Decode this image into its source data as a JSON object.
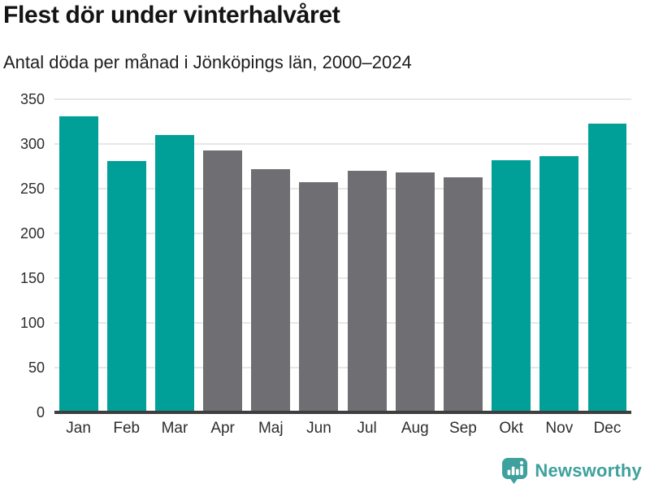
{
  "header": {
    "title": "Flest dör under vinterhalvåret",
    "subtitle": "Antal döda per månad i Jönköpings län, 2000–2024"
  },
  "chart_data": {
    "type": "bar",
    "title": "Flest dör under vinterhalvåret",
    "subtitle": "Antal döda per månad i Jönköpings län, 2000–2024",
    "categories": [
      "Jan",
      "Feb",
      "Mar",
      "Apr",
      "Maj",
      "Jun",
      "Jul",
      "Aug",
      "Sep",
      "Okt",
      "Nov",
      "Dec"
    ],
    "values": [
      331,
      281,
      310,
      293,
      272,
      257,
      270,
      268,
      263,
      282,
      286,
      323
    ],
    "highlighted": [
      true,
      true,
      true,
      false,
      false,
      false,
      false,
      false,
      false,
      true,
      true,
      true
    ],
    "xlabel": "",
    "ylabel": "",
    "ylim": [
      0,
      350
    ],
    "yticks": [
      0,
      50,
      100,
      150,
      200,
      250,
      300,
      350
    ],
    "grid": true,
    "legend": "none",
    "colors": {
      "highlight": "#00a099",
      "base": "#6e6e73",
      "gridline": "#e7e7e7",
      "axis_line": "#3e3e3e",
      "tick_text": "#2d2d2d"
    }
  },
  "footer": {
    "brand": "Newsworthy",
    "brand_color": "#3ea19d",
    "logo_icon": "bar-chart-speech-bubble-icon"
  }
}
